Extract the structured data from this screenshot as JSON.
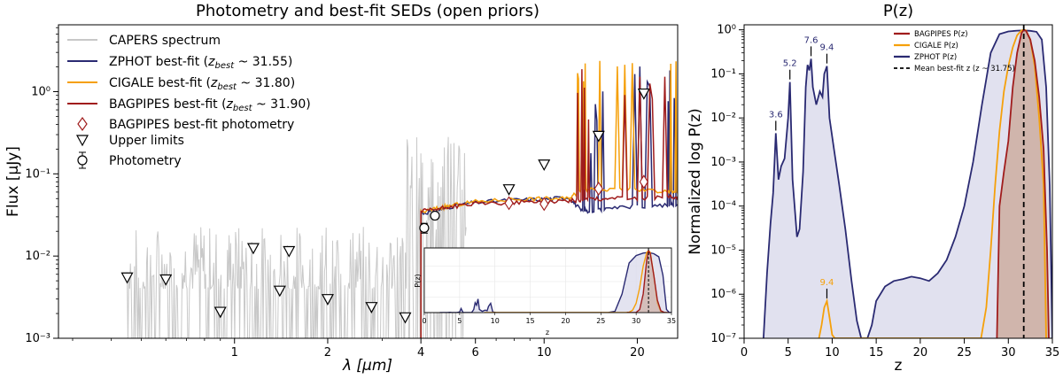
{
  "colors": {
    "zphot": "#2a2a72",
    "cigale": "#f5a00a",
    "bagpipes": "#a01c1c",
    "spectrum": "#c8c8c8",
    "fill_zphot": "#dcdcec",
    "fill_bagpipes": "#c9a596"
  },
  "chart_data": [
    {
      "type": "line",
      "title": "Photometry and best-fit SEDs (open priors)",
      "xlabel": "λ [μm]",
      "ylabel": "Flux [μJy]",
      "xscale": "log",
      "yscale": "log",
      "xlim": [
        0.27,
        27
      ],
      "ylim": [
        0.001,
        6.5
      ],
      "xticks": [
        1,
        2,
        4,
        6,
        10,
        20
      ],
      "xtick_labels": [
        "1",
        "2",
        "4",
        "6",
        "10",
        "20"
      ],
      "yticks": [
        0.001,
        0.01,
        0.1,
        1
      ],
      "ytick_labels": [
        "10⁻³",
        "10⁻²",
        "10⁻¹",
        "10⁰"
      ],
      "legend": {
        "position": "top-left",
        "entries": [
          {
            "key": "spectrum",
            "label": "CAPERS spectrum"
          },
          {
            "key": "zphot",
            "label": "ZPHOT best-fit (",
            "z_sub": "best",
            "z_tail": " ~ 31.55)"
          },
          {
            "key": "cigale",
            "label": "CIGALE best-fit (",
            "z_sub": "best",
            "z_tail": " ~ 31.80)"
          },
          {
            "key": "bagpipes",
            "label": "BAGPIPES best-fit (",
            "z_sub": "best",
            "z_tail": " ~ 31.90)"
          },
          {
            "key": "bag_phot",
            "label": "BAGPIPES best-fit photometry"
          },
          {
            "key": "upper",
            "label": "Upper limits"
          },
          {
            "key": "phot",
            "label": "Photometry"
          }
        ]
      },
      "upper_limits": [
        {
          "x": 0.45,
          "y": 0.0055
        },
        {
          "x": 0.6,
          "y": 0.0052
        },
        {
          "x": 0.9,
          "y": 0.0021
        },
        {
          "x": 1.15,
          "y": 0.0125
        },
        {
          "x": 1.4,
          "y": 0.0038
        },
        {
          "x": 1.5,
          "y": 0.0115
        },
        {
          "x": 2.0,
          "y": 0.003
        },
        {
          "x": 2.77,
          "y": 0.0024
        },
        {
          "x": 3.56,
          "y": 0.0018
        },
        {
          "x": 7.7,
          "y": 0.065
        },
        {
          "x": 10.0,
          "y": 0.13
        },
        {
          "x": 15.0,
          "y": 0.29
        },
        {
          "x": 21.0,
          "y": 0.95
        }
      ],
      "photometry": [
        {
          "x": 4.1,
          "y": 0.022,
          "err": 0.003
        },
        {
          "x": 4.44,
          "y": 0.031,
          "err": 0.0025
        }
      ],
      "bagpipes_photometry": [
        {
          "x": 7.7,
          "y": 0.044
        },
        {
          "x": 10.0,
          "y": 0.043
        },
        {
          "x": 15.0,
          "y": 0.066
        },
        {
          "x": 21.0,
          "y": 0.08
        }
      ],
      "sed_continuum": [
        {
          "name": "ZPHOT",
          "key": "zphot",
          "x": [
            4.0,
            4.5,
            5.0,
            6.0,
            8.0,
            10.0,
            12.0,
            13.0,
            14.0,
            16.0,
            20.0,
            25.0,
            27.0
          ],
          "y": [
            0.033,
            0.036,
            0.04,
            0.045,
            0.048,
            0.049,
            0.052,
            0.038,
            0.035,
            0.038,
            0.04,
            0.042,
            0.042
          ]
        },
        {
          "name": "CIGALE",
          "key": "cigale",
          "x": [
            4.0,
            4.5,
            5.0,
            6.0,
            8.0,
            10.0,
            12.0,
            13.0,
            14.0,
            16.0,
            20.0,
            25.0,
            27.0
          ],
          "y": [
            0.034,
            0.038,
            0.041,
            0.046,
            0.049,
            0.05,
            0.05,
            0.062,
            0.064,
            0.063,
            0.065,
            0.06,
            0.058
          ]
        },
        {
          "name": "BAGPIPES",
          "key": "bagpipes",
          "x": [
            4.0,
            4.5,
            5.0,
            6.0,
            8.0,
            10.0,
            12.0,
            13.0,
            14.0,
            16.0,
            20.0,
            25.0,
            27.0
          ],
          "y": [
            0.035,
            0.037,
            0.04,
            0.043,
            0.045,
            0.046,
            0.047,
            0.048,
            0.05,
            0.05,
            0.05,
            0.052,
            0.053
          ]
        }
      ],
      "inset": {
        "xlabel": "z",
        "ylabel": "P(z)",
        "xticks": [
          0,
          5,
          10,
          15,
          20,
          25,
          30,
          35
        ],
        "xtick_labels": [
          "0",
          "5",
          "10",
          "15",
          "20",
          "25",
          "30",
          "35"
        ]
      }
    },
    {
      "type": "area",
      "title": "P(z)",
      "xlabel": "z",
      "ylabel": "Normalized log P(z)",
      "xscale": "linear",
      "yscale": "log",
      "xlim": [
        0,
        35
      ],
      "ylim": [
        1e-07,
        1.3
      ],
      "xticks": [
        0,
        5,
        10,
        15,
        20,
        25,
        30,
        35
      ],
      "xtick_labels": [
        "0",
        "5",
        "10",
        "15",
        "20",
        "25",
        "30",
        "35"
      ],
      "yticks": [
        1e-07,
        1e-06,
        1e-05,
        0.0001,
        0.001,
        0.01,
        0.1,
        1
      ],
      "ytick_labels": [
        "10⁻⁷",
        "10⁻⁶",
        "10⁻⁵",
        "10⁻⁴",
        "10⁻³",
        "10⁻²",
        "10⁻¹",
        "10⁰"
      ],
      "mean_z": 31.75,
      "legend": {
        "position": "top-right",
        "entries": [
          {
            "key": "bagpipes",
            "label": "BAGPIPES P(z)"
          },
          {
            "key": "cigale",
            "label": "CIGALE P(z)"
          },
          {
            "key": "zphot",
            "label": "ZPHOT P(z)"
          },
          {
            "key": "mean",
            "label": "Mean best-fit z (z ~ 31.75)"
          }
        ]
      },
      "peak_labels": [
        {
          "text": "3.6",
          "z": 3.6,
          "p": 0.0045,
          "key": "zphot"
        },
        {
          "text": "5.2",
          "z": 5.2,
          "p": 0.065,
          "key": "zphot"
        },
        {
          "text": "7.6",
          "z": 7.6,
          "p": 0.22,
          "key": "zphot"
        },
        {
          "text": "9.4",
          "z": 9.4,
          "p": 0.15,
          "key": "zphot"
        },
        {
          "text": "9.4",
          "z": 9.4,
          "p": 7e-07,
          "key": "cigale"
        }
      ],
      "series": [
        {
          "name": "ZPHOT P(z)",
          "key": "zphot",
          "z": [
            2.2,
            2.6,
            3.0,
            3.3,
            3.6,
            3.9,
            4.2,
            4.6,
            5.0,
            5.2,
            5.5,
            6.0,
            6.3,
            6.7,
            7.0,
            7.2,
            7.4,
            7.6,
            7.8,
            8.2,
            8.6,
            8.9,
            9.1,
            9.4,
            9.7,
            10.2,
            10.8,
            11.5,
            12.2,
            12.8,
            13.3,
            14.0,
            14.5,
            15.0,
            16.0,
            17.0,
            18.0,
            19.0,
            20.0,
            21.0,
            22.0,
            23.0,
            24.0,
            25.0,
            26.0,
            27.0,
            28.0,
            29.0,
            30.0,
            31.0,
            31.75,
            32.5,
            33.2,
            33.8,
            34.3,
            34.7,
            35.0
          ],
          "p": [
            1e-07,
            3e-06,
            4e-05,
            0.0002,
            0.0045,
            0.0004,
            0.0008,
            0.0012,
            0.01,
            0.065,
            0.0004,
            2e-05,
            3e-05,
            0.0006,
            0.05,
            0.16,
            0.12,
            0.22,
            0.05,
            0.02,
            0.04,
            0.03,
            0.1,
            0.15,
            0.01,
            0.002,
            0.0003,
            3e-05,
            2e-06,
            2.5e-07,
            1e-07,
            1e-07,
            2e-07,
            7e-07,
            1.5e-06,
            2e-06,
            2.2e-06,
            2.5e-06,
            2.3e-06,
            2e-06,
            3e-06,
            6e-06,
            2e-05,
            0.0001,
            0.001,
            0.02,
            0.3,
            0.8,
            0.92,
            0.96,
            0.97,
            0.95,
            0.9,
            0.6,
            0.05,
            0.0003,
            1e-07
          ]
        },
        {
          "name": "CIGALE P(z)",
          "key": "cigale",
          "z": [
            8.5,
            8.8,
            9.1,
            9.4,
            9.7,
            10.0,
            10.3,
            26.9,
            27.5,
            28.0,
            28.5,
            29.0,
            29.5,
            30.0,
            30.5,
            31.0,
            31.5,
            31.75,
            32.0,
            32.5,
            33.0,
            33.5,
            34.0,
            34.3
          ],
          "p": [
            1e-07,
            2e-07,
            5e-07,
            7e-07,
            3e-07,
            1.2e-07,
            1e-07,
            1e-07,
            5e-07,
            1e-05,
            0.0003,
            0.005,
            0.04,
            0.15,
            0.4,
            0.75,
            0.97,
            1.0,
            0.97,
            0.6,
            0.15,
            0.01,
            0.0003,
            1e-07
          ]
        },
        {
          "name": "BAGPIPES P(z)",
          "key": "bagpipes",
          "z": [
            28.7,
            29.0,
            29.5,
            30.0,
            30.5,
            31.0,
            31.5,
            31.75,
            32.0,
            32.5,
            33.0,
            33.5,
            34.0,
            34.4,
            34.6
          ],
          "p": [
            1e-07,
            0.0001,
            0.0006,
            0.003,
            0.05,
            0.3,
            0.85,
            1.0,
            0.95,
            0.6,
            0.2,
            0.03,
            0.002,
            1e-05,
            1e-07
          ]
        }
      ]
    }
  ]
}
